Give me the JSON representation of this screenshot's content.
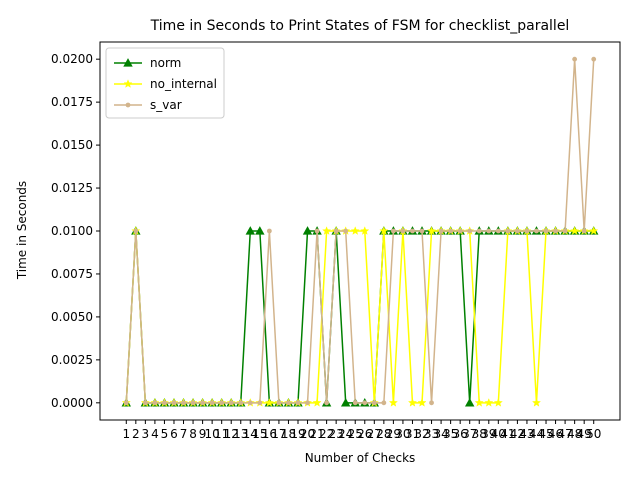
{
  "chart_data": {
    "type": "line",
    "title": "Time in Seconds to Print States of FSM for checklist_parallel",
    "xlabel": "Number of Checks",
    "ylabel": "Time in Seconds",
    "x": [
      1,
      2,
      3,
      4,
      5,
      6,
      7,
      8,
      9,
      10,
      11,
      12,
      13,
      14,
      15,
      16,
      17,
      18,
      19,
      20,
      21,
      22,
      23,
      24,
      25,
      26,
      27,
      28,
      29,
      30,
      31,
      32,
      33,
      34,
      35,
      36,
      37,
      38,
      39,
      40,
      41,
      42,
      43,
      44,
      45,
      46,
      47,
      48,
      49,
      50
    ],
    "ylim": [
      -0.001,
      0.021
    ],
    "yticks": [
      0.0,
      0.0025,
      0.005,
      0.0075,
      0.01,
      0.0125,
      0.015,
      0.0175,
      0.02
    ],
    "ytick_labels": [
      "0.0000",
      "0.0025",
      "0.0050",
      "0.0075",
      "0.0100",
      "0.0125",
      "0.0150",
      "0.0175",
      "0.0200"
    ],
    "grid": false,
    "legend_position": "upper-left",
    "series": [
      {
        "name": "norm",
        "color": "#008000",
        "marker": "triangle-up",
        "values": [
          0,
          0.01,
          0,
          0,
          0,
          0,
          0,
          0,
          0,
          0,
          0,
          0,
          0,
          0.01,
          0.01,
          0,
          0,
          0,
          0,
          0.01,
          0.01,
          0,
          0.01,
          0,
          0,
          0,
          0,
          0.01,
          0.01,
          0.01,
          0.01,
          0.01,
          0.01,
          0.01,
          0.01,
          0.01,
          0,
          0.01,
          0.01,
          0.01,
          0.01,
          0.01,
          0.01,
          0.01,
          0.01,
          0.01,
          0.01,
          0.01,
          0.01,
          0.01
        ]
      },
      {
        "name": "no_internal",
        "color": "#ffff00",
        "marker": "star",
        "values": [
          0,
          0.01,
          0,
          0,
          0,
          0,
          0,
          0,
          0,
          0,
          0,
          0,
          0,
          0,
          0,
          0,
          0,
          0,
          0,
          0,
          0,
          0.01,
          0.01,
          0.01,
          0.01,
          0.01,
          0,
          0.01,
          0,
          0.01,
          0,
          0,
          0.01,
          0.01,
          0.01,
          0.01,
          0.01,
          0,
          0,
          0,
          0.01,
          0.01,
          0.01,
          0,
          0.01,
          0.01,
          0.01,
          0.01,
          0.01,
          0.01
        ]
      },
      {
        "name": "s_var",
        "color": "#d2b48c",
        "marker": "circle",
        "values": [
          0,
          0.01,
          0,
          0,
          0,
          0,
          0,
          0,
          0,
          0,
          0,
          0,
          0,
          0,
          0,
          0.01,
          0,
          0,
          0,
          0,
          0.01,
          0,
          0.01,
          0.01,
          0,
          0,
          0,
          0,
          0.01,
          0.01,
          0.01,
          0.01,
          0,
          0.01,
          0.01,
          0.01,
          0.01,
          0.01,
          0.01,
          0.01,
          0.01,
          0.01,
          0.01,
          0.01,
          0.01,
          0.01,
          0.01,
          0.02,
          0.01,
          0.02
        ]
      }
    ]
  }
}
